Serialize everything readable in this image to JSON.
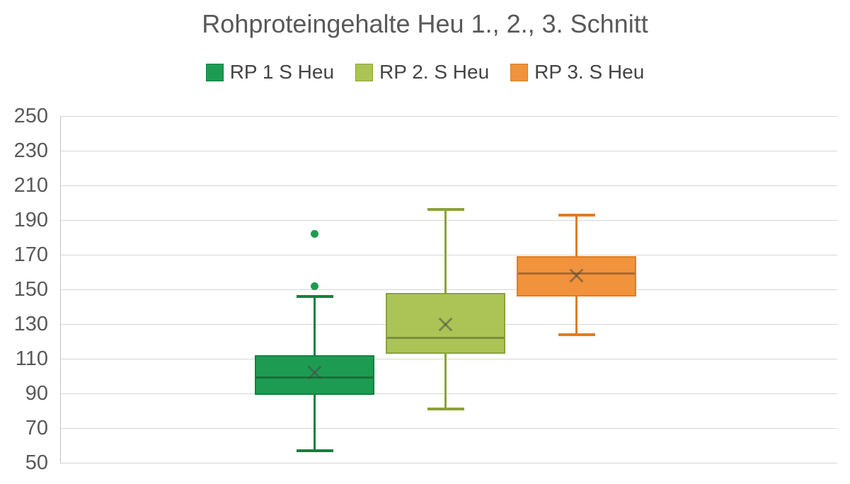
{
  "chart_data": {
    "type": "boxplot",
    "title": "Rohproteingehalte Heu 1., 2., 3. Schnitt",
    "ylabel": "",
    "xlabel": "",
    "ylim": [
      50,
      250
    ],
    "yticks": [
      250,
      230,
      210,
      190,
      170,
      150,
      130,
      110,
      90,
      70,
      50
    ],
    "grid": true,
    "legend_position": "top",
    "title_color": "#595959",
    "axis_label_color": "#595959",
    "gridline_color": "#d6d6d6",
    "series": [
      {
        "name": "RP 1 S Heu",
        "fill": "#1e9b52",
        "stroke": "#11813f",
        "whisker_low": 57,
        "q1": 89,
        "median": 99,
        "mean": 102,
        "q3": 112,
        "whisker_high": 146,
        "outliers": [
          152,
          182
        ]
      },
      {
        "name": "RP 2. S Heu",
        "fill": "#abc455",
        "stroke": "#8ba23a",
        "whisker_low": 81,
        "q1": 113,
        "median": 122,
        "mean": 130,
        "q3": 148,
        "whisker_high": 196,
        "outliers": []
      },
      {
        "name": "RP 3. S Heu",
        "fill": "#f1923c",
        "stroke": "#de7d23",
        "whisker_low": 124,
        "q1": 146,
        "median": 159,
        "mean": 158,
        "q3": 169,
        "whisker_high": 193,
        "outliers": []
      }
    ]
  }
}
